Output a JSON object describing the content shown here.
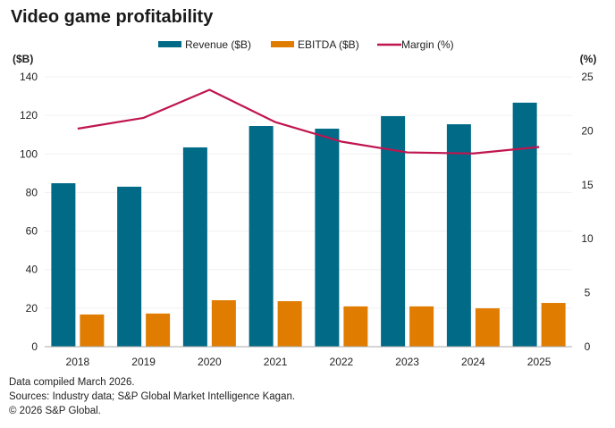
{
  "chart_data": {
    "type": "bar",
    "title": "Video game profitability",
    "categories": [
      "2018",
      "2019",
      "2020",
      "2021",
      "2022",
      "2023",
      "2024",
      "2025"
    ],
    "series": [
      {
        "name": "Revenue ($B)",
        "type": "bar",
        "axis": "left",
        "color": "#006a87",
        "values": [
          84.8,
          83.0,
          103.4,
          114.5,
          113.1,
          119.6,
          115.4,
          126.6
        ]
      },
      {
        "name": "EBITDA ($B)",
        "type": "bar",
        "axis": "left",
        "color": "#e07c00",
        "values": [
          16.7,
          17.2,
          24.1,
          23.6,
          20.9,
          20.9,
          19.9,
          22.7
        ]
      },
      {
        "name": "Margin (%)",
        "type": "line",
        "axis": "right",
        "color": "#c0154f",
        "values": [
          20.2,
          21.2,
          23.8,
          20.8,
          19.0,
          18.0,
          17.9,
          18.5
        ]
      }
    ],
    "y_left": {
      "label": "($B)",
      "lim": [
        0,
        140
      ],
      "ticks": [
        0,
        20,
        40,
        60,
        80,
        100,
        120,
        140
      ]
    },
    "y_right": {
      "label": "(%)",
      "lim": [
        0,
        25
      ],
      "ticks": [
        0,
        5,
        10,
        15,
        20,
        25
      ]
    },
    "xlabel": "",
    "grid": true,
    "legend_position": "top-center"
  },
  "footer": {
    "line1": "Data compiled March 2026.",
    "line2": "Sources: Industry data; S&P Global Market Intelligence Kagan.",
    "line3": "© 2026 S&P Global."
  }
}
